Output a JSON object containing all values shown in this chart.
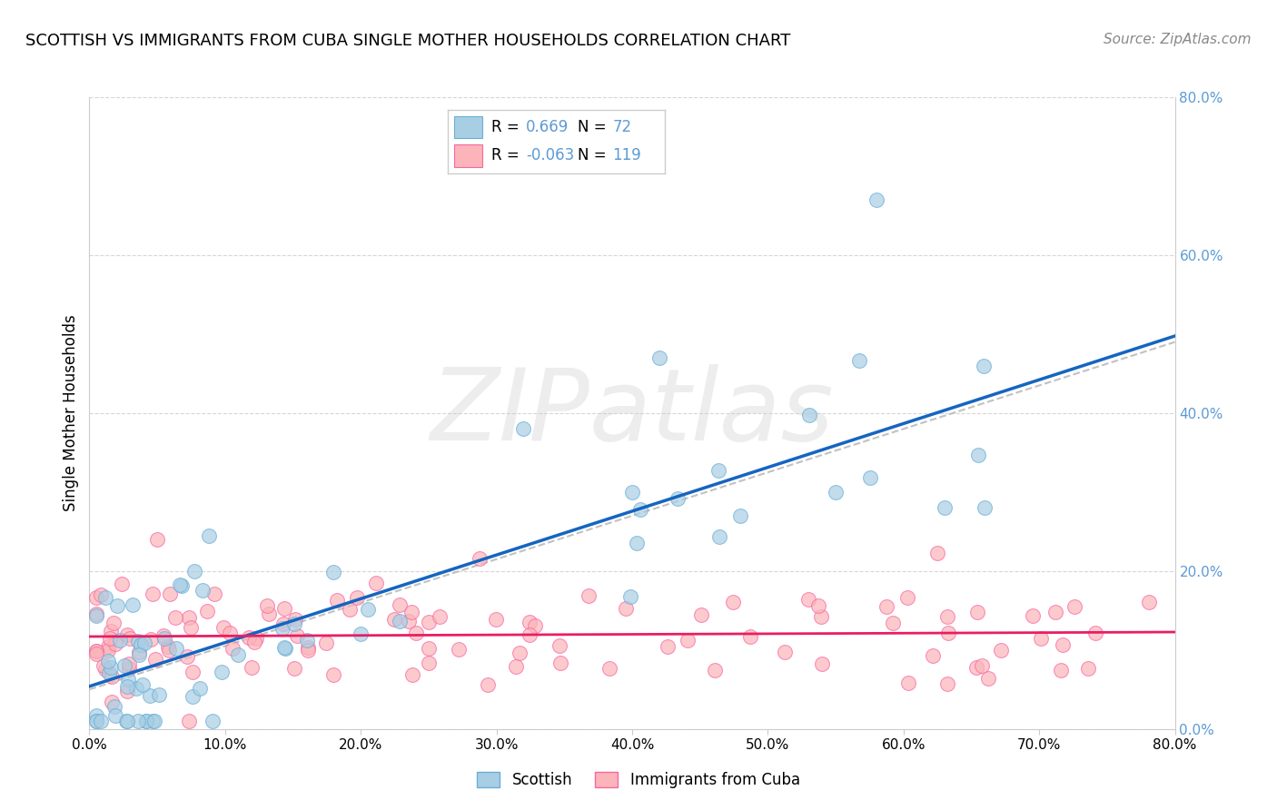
{
  "title": "SCOTTISH VS IMMIGRANTS FROM CUBA SINGLE MOTHER HOUSEHOLDS CORRELATION CHART",
  "source": "Source: ZipAtlas.com",
  "ylabel": "Single Mother Households",
  "xlabel": "",
  "xlim": [
    0.0,
    0.8
  ],
  "ylim": [
    0.0,
    0.8
  ],
  "xticks": [
    0.0,
    0.1,
    0.2,
    0.3,
    0.4,
    0.5,
    0.6,
    0.7,
    0.8
  ],
  "xticklabels": [
    "0.0%",
    "10.0%",
    "20.0%",
    "30.0%",
    "40.0%",
    "50.0%",
    "60.0%",
    "70.0%",
    "80.0%"
  ],
  "yticks": [
    0.0,
    0.2,
    0.4,
    0.6,
    0.8
  ],
  "yticklabels": [
    "0.0%",
    "20.0%",
    "40.0%",
    "60.0%",
    "80.0%"
  ],
  "scottish_color": "#a8cee4",
  "scottish_edge_color": "#6baed6",
  "cuba_color": "#fbb4b9",
  "cuba_edge_color": "#f768a1",
  "scottish_R": 0.669,
  "scottish_N": 72,
  "cuba_R": -0.063,
  "cuba_N": 119,
  "legend_label_scottish": "Scottish",
  "legend_label_cuba": "Immigrants from Cuba",
  "watermark": "ZIPatlas",
  "background_color": "#ffffff",
  "grid_color": "#cccccc",
  "scottish_line_color": "#1565C0",
  "cuba_line_color": "#e91e63",
  "dashed_line_color": "#bbbbbb",
  "right_axis_color": "#5b9bd5",
  "title_fontsize": 13,
  "source_fontsize": 11,
  "tick_fontsize": 11,
  "ylabel_fontsize": 12
}
